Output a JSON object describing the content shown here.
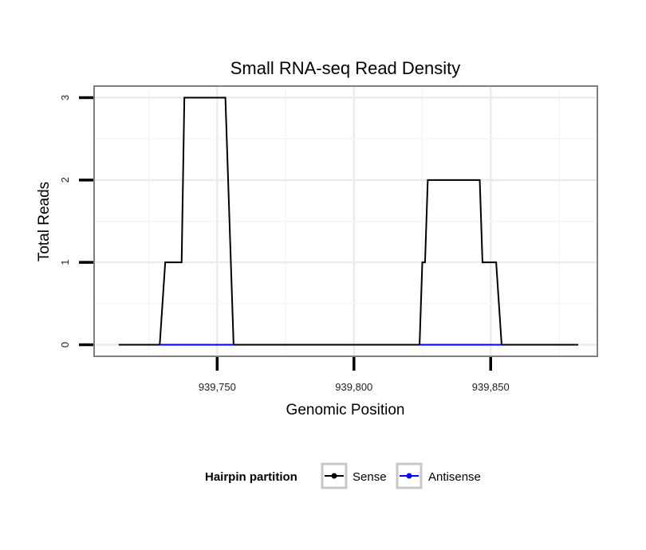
{
  "chart_data": {
    "type": "line",
    "title": "Small RNA-seq Read Density",
    "xlabel": "Genomic Position",
    "ylabel": "Total Reads",
    "xlim": [
      939705,
      939889
    ],
    "ylim": [
      -0.14,
      3.14
    ],
    "x_ticks": [
      939750,
      939800,
      939850
    ],
    "x_tick_labels": [
      "939,750",
      "939,800",
      "939,850"
    ],
    "y_ticks": [
      0,
      1,
      2,
      3
    ],
    "y_tick_labels": [
      "0",
      "1",
      "2",
      "3"
    ],
    "grid": true,
    "legend_position": "bottom",
    "legend_title": "Hairpin partition",
    "series": [
      {
        "name": "Sense",
        "color": "#000000",
        "x": [
          939714,
          939729,
          939731,
          939737,
          939738,
          939753,
          939754,
          939756,
          939824,
          939825,
          939826,
          939827,
          939846,
          939847,
          939852,
          939854,
          939882
        ],
        "y": [
          0,
          0,
          1,
          1,
          3,
          3,
          2,
          0,
          0,
          1,
          1,
          2,
          2,
          1,
          1,
          0,
          0
        ]
      },
      {
        "name": "Antisense",
        "color": "#0000ff",
        "x": [
          939729,
          939756,
          939824,
          939854
        ],
        "y": [
          0,
          0,
          0,
          0
        ],
        "segments": [
          [
            0,
            1
          ],
          [
            2,
            3
          ]
        ]
      }
    ]
  }
}
